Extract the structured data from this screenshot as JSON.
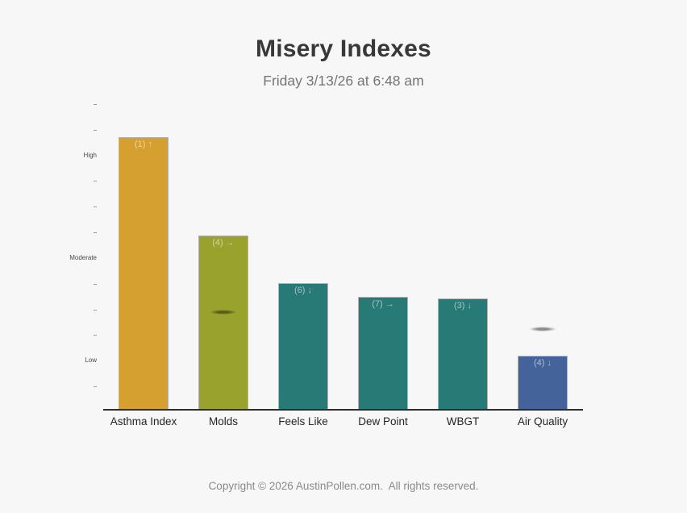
{
  "header": {
    "title": "Misery Indexes",
    "subtitle": "Friday 3/13/26 at 6:48 am"
  },
  "chart_data": {
    "type": "bar",
    "title": "Misery Indexes",
    "subtitle": "Friday 3/13/26 at 6:48 am",
    "categories": [
      "Asthma Index",
      "Molds",
      "Feels Like",
      "Dew Point",
      "WBGT",
      "Air Quality"
    ],
    "values": [
      10.63,
      6.79,
      4.94,
      4.4,
      4.34,
      2.11
    ],
    "bar_labels": [
      "(1) ↑",
      "(4) →",
      "(6) ↓",
      "(7) →",
      "(3) ↓",
      "(4) ↓"
    ],
    "bar_colors": [
      "#d5a02f",
      "#99a22c",
      "#287a77",
      "#287a77",
      "#287a77",
      "#44639a"
    ],
    "ylim": [
      0,
      12
    ],
    "grid": false,
    "legend": "none",
    "y_axis": {
      "tick_count": 12,
      "labels": [
        {
          "text": "High",
          "tick_index_from_top": 2
        },
        {
          "text": "Moderate",
          "tick_index_from_top": 6
        },
        {
          "text": "Low",
          "tick_index_from_top": 10
        }
      ]
    },
    "markers": [
      {
        "category": "Molds",
        "category_index": 1,
        "value": 3.8,
        "color": "#565c1e",
        "shape": "lens-ellipse"
      },
      {
        "category": "Air Quality",
        "category_index": 5,
        "value": 3.14,
        "color": "#8c8c8c",
        "shape": "lens-ellipse"
      }
    ]
  },
  "footer": {
    "copyright": "Copyright © 2026 AustinPollen.com.  All rights reserved."
  },
  "colors": {
    "background": "#f7f7f7",
    "title": "#383838",
    "subtitle": "#757575",
    "axis_line": "#2e2e2e",
    "x_label": "#252525",
    "y_label": "#4a4a4a",
    "tick": "#999999",
    "bar_border": "#b3b3b3",
    "bar_value_label": "rgba(250,250,250,0.58)",
    "footer": "#8a8a8a"
  }
}
